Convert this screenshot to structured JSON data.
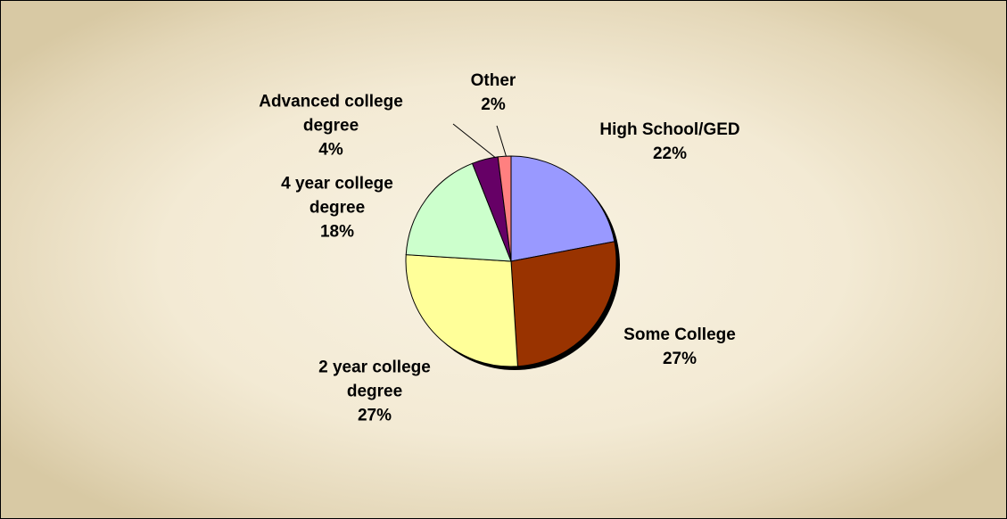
{
  "chart_data": {
    "type": "pie",
    "categories": [
      "High School/GED",
      "Some College",
      "2 year college degree",
      "4 year college degree",
      "Advanced college degree",
      "Other"
    ],
    "values": [
      22,
      27,
      27,
      18,
      4,
      2
    ],
    "value_labels": [
      "22%",
      "27%",
      "27%",
      "18%",
      "4%",
      "2%"
    ],
    "colors": [
      "#9999ff",
      "#993300",
      "#ffff99",
      "#ccffcc",
      "#660066",
      "#ff8080"
    ]
  }
}
